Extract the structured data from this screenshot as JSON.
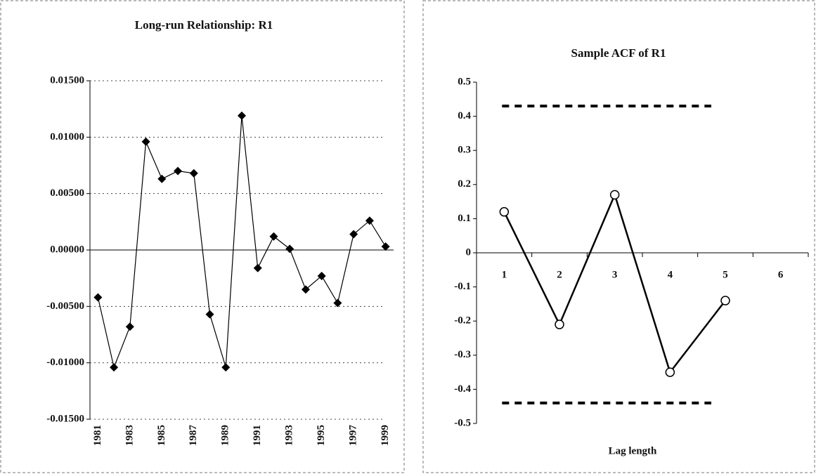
{
  "chart_data": [
    {
      "type": "line",
      "title": "Long-run Relationship: R1",
      "categories": [
        "1981",
        null,
        "1983",
        null,
        "1985",
        null,
        "1987",
        null,
        "1989",
        null,
        "1991",
        null,
        "1993",
        null,
        "1995",
        null,
        "1997",
        null,
        "1999"
      ],
      "series": [
        {
          "color": "#000000",
          "marker": "diamond",
          "values": [
            -0.0042,
            -0.0104,
            -0.0068,
            0.0096,
            0.0063,
            0.007,
            0.0068,
            -0.0057,
            -0.0104,
            0.0119,
            -0.0016,
            0.0012,
            0.0001,
            -0.0035,
            -0.0023,
            -0.0047,
            0.0014,
            0.0026,
            0.0003
          ]
        }
      ],
      "ylim": [
        -0.015,
        0.015
      ],
      "yticks": [
        {
          "value": 0.015,
          "label": "0.01500"
        },
        {
          "value": 0.01,
          "label": "0.01000"
        },
        {
          "value": 0.005,
          "label": "0.00500"
        },
        {
          "value": 0,
          "label": "0.00000"
        },
        {
          "value": -0.005,
          "label": "-0.00500"
        },
        {
          "value": -0.01,
          "label": "-0.01000"
        },
        {
          "value": -0.015,
          "label": "-0.01500"
        }
      ],
      "grid": true,
      "rotate_x_labels": true
    },
    {
      "type": "line",
      "title": "Sample ACF of R1",
      "x_label": "Lag length",
      "categories": [
        "1",
        "2",
        "3",
        "4",
        "5",
        "6"
      ],
      "series": [
        {
          "color": "#000000",
          "marker": "circle",
          "values": [
            0.12,
            -0.21,
            0.17,
            -0.35,
            -0.14,
            null
          ]
        }
      ],
      "reference_lines": [
        0.43,
        -0.44
      ],
      "ylim": [
        -0.5,
        0.5
      ],
      "yticks": [
        0.5,
        0.4,
        0.3,
        0.2,
        0.1,
        0,
        -0.1,
        -0.2,
        -0.3,
        -0.4,
        -0.5
      ],
      "grid": false,
      "rotate_x_labels": false
    }
  ]
}
